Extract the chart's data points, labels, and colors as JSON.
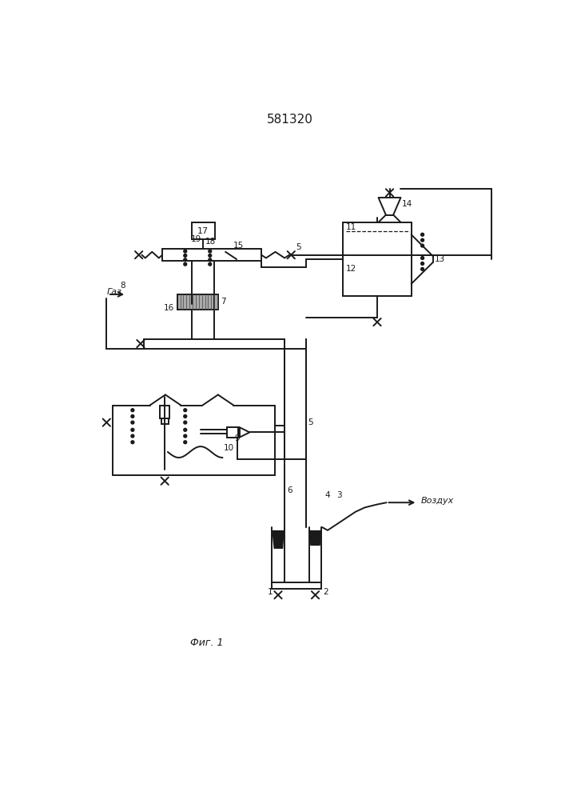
{
  "title": "581320",
  "fig_label": "Фиг. 1",
  "vozdukh": "Воздух",
  "gaz": "Газ",
  "bg_color": "#ffffff",
  "lc": "#1a1a1a"
}
